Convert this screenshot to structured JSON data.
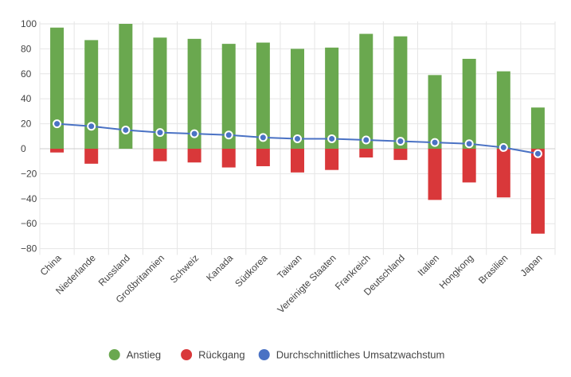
{
  "chart_data": {
    "type": "bar",
    "categories": [
      "China",
      "Niederlande",
      "Russland",
      "Großbritannien",
      "Schweiz",
      "Kanada",
      "Südkorea",
      "Taiwan",
      "Vereinigte Staaten",
      "Frankreich",
      "Deutschland",
      "Italien",
      "Hongkong",
      "Brasilien",
      "Japan"
    ],
    "series": [
      {
        "name": "Anstieg",
        "kind": "bar",
        "color": "#6aa84f",
        "values": [
          97,
          87,
          100,
          89,
          88,
          84,
          85,
          80,
          81,
          92,
          90,
          59,
          72,
          62,
          33
        ]
      },
      {
        "name": "Rückgang",
        "kind": "bar",
        "color": "#d9383a",
        "values": [
          -3,
          -12,
          0,
          -10,
          -11,
          -15,
          -14,
          -19,
          -17,
          -7,
          -9,
          -41,
          -27,
          -39,
          -68
        ]
      },
      {
        "name": "Durchschnittliches Umsatzwachstum",
        "kind": "line",
        "color": "#4a72c4",
        "values": [
          20,
          18,
          15,
          13,
          12,
          11,
          9,
          8,
          8,
          7,
          6,
          5,
          4,
          1,
          -4
        ]
      }
    ],
    "yticks": [
      100,
      80,
      60,
      40,
      20,
      0,
      -20,
      -40,
      -60,
      -80
    ],
    "ylim": [
      -85,
      102
    ],
    "grid": true,
    "legend_position": "bottom"
  }
}
